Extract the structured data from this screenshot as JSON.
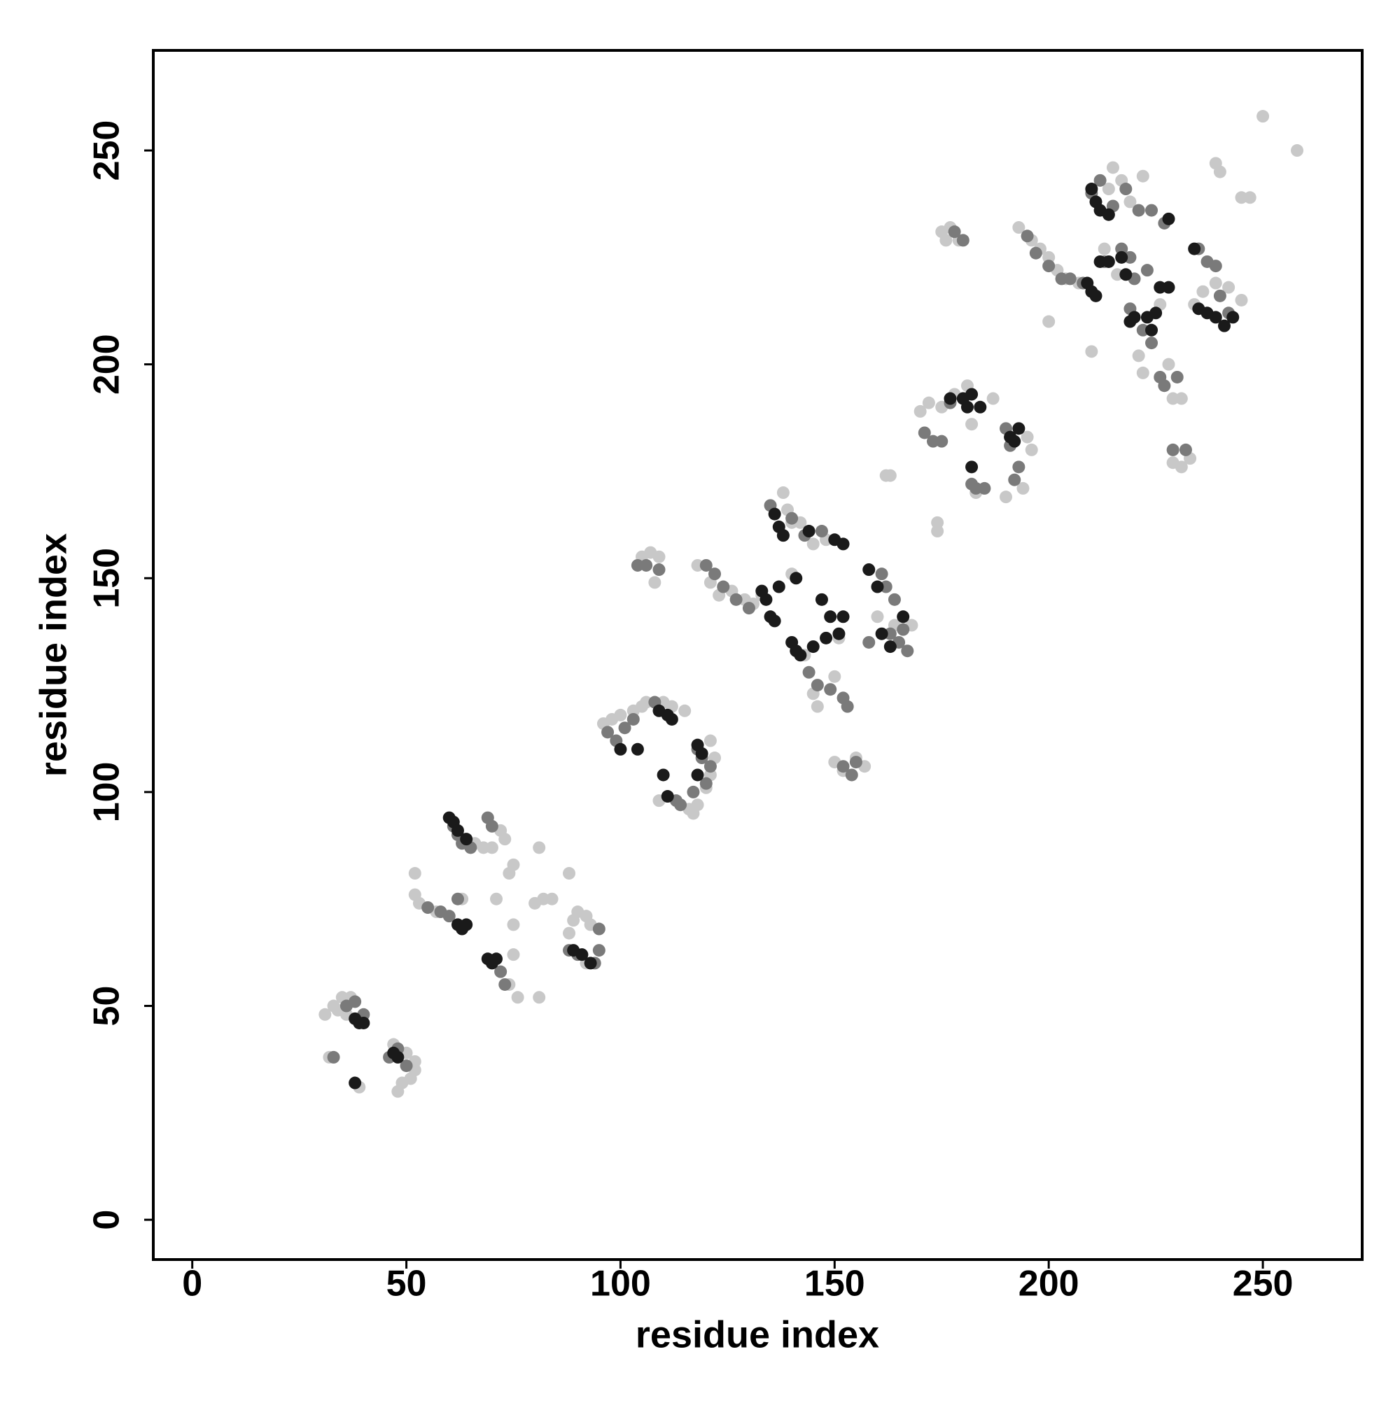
{
  "chart_data": {
    "type": "scatter",
    "x_label": "residue index",
    "y_label": "residue index",
    "xlim": [
      -9.1,
      273.2
    ],
    "ylim": [
      -9.3,
      273.4
    ],
    "xticks": [
      0,
      50,
      100,
      150,
      200,
      250
    ],
    "yticks": [
      0,
      50,
      100,
      150,
      200,
      250
    ],
    "grid": false,
    "series": [
      {
        "color": "#c8c8c8",
        "x": [
          31,
          33,
          35,
          37,
          34,
          32,
          39,
          48,
          49,
          51,
          52,
          52,
          50,
          47,
          36,
          52,
          52,
          53,
          55,
          57,
          63,
          66,
          68,
          70,
          72,
          73,
          74,
          75,
          75,
          75,
          74,
          76,
          81,
          80,
          81,
          82,
          84,
          88,
          88,
          89,
          90,
          92,
          93,
          92,
          71,
          96,
          98,
          100,
          103,
          105,
          106,
          110,
          112,
          115,
          121,
          122,
          121,
          120,
          118,
          117,
          116,
          109,
          105,
          107,
          109,
          108,
          118,
          121,
          123,
          126,
          129,
          131,
          138,
          139,
          140,
          142,
          145,
          148,
          151,
          160,
          164,
          168,
          150,
          152,
          155,
          157,
          146,
          145,
          143,
          150,
          133,
          140,
          162,
          163,
          174,
          174,
          170,
          172,
          175,
          178,
          181,
          182,
          187,
          190,
          194,
          196,
          195,
          183,
          175,
          177,
          176,
          179,
          193,
          196,
          198,
          200,
          202,
          204,
          207,
          200,
          210,
          213,
          215,
          217,
          219,
          214,
          222,
          216,
          226,
          229,
          231,
          229,
          231,
          233,
          234,
          236,
          239,
          242,
          245,
          239,
          240,
          245,
          247,
          250,
          258,
          221,
          222,
          228
        ],
        "y": [
          48,
          50,
          52,
          52,
          49,
          38,
          31,
          30,
          32,
          33,
          35,
          37,
          39,
          41,
          48,
          81,
          76,
          74,
          73,
          72,
          75,
          88,
          87,
          87,
          91,
          89,
          81,
          83,
          69,
          62,
          55,
          52,
          52,
          74,
          87,
          75,
          75,
          81,
          67,
          70,
          72,
          71,
          69,
          60,
          75,
          116,
          117,
          118,
          119,
          120,
          121,
          121,
          120,
          119,
          112,
          108,
          104,
          101,
          97,
          95,
          96,
          98,
          155,
          156,
          155,
          149,
          153,
          149,
          146,
          147,
          145,
          144,
          170,
          166,
          163,
          163,
          158,
          159,
          136,
          141,
          139,
          139,
          107,
          105,
          108,
          106,
          120,
          123,
          132,
          127,
          146,
          151,
          174,
          174,
          163,
          161,
          189,
          191,
          190,
          193,
          195,
          186,
          192,
          169,
          171,
          180,
          183,
          170,
          231,
          232,
          229,
          229,
          232,
          229,
          227,
          225,
          222,
          220,
          219,
          210,
          203,
          227,
          246,
          243,
          238,
          241,
          244,
          221,
          214,
          192,
          192,
          177,
          176,
          178,
          214,
          217,
          219,
          218,
          215,
          247,
          245,
          239,
          239,
          258,
          250,
          202,
          198,
          200
        ]
      },
      {
        "color": "#7a7a7a",
        "x": [
          33,
          36,
          38,
          40,
          48,
          50,
          46,
          55,
          58,
          60,
          61,
          62,
          63,
          65,
          69,
          70,
          72,
          73,
          88,
          90,
          94,
          95,
          95,
          62,
          97,
          99,
          101,
          103,
          108,
          113,
          114,
          118,
          119,
          121,
          120,
          117,
          106,
          109,
          104,
          120,
          122,
          124,
          127,
          130,
          135,
          138,
          140,
          143,
          147,
          144,
          146,
          149,
          152,
          153,
          161,
          162,
          163,
          165,
          166,
          167,
          152,
          154,
          155,
          158,
          164,
          171,
          173,
          175,
          177,
          180,
          182,
          183,
          185,
          192,
          193,
          191,
          190,
          178,
          180,
          195,
          197,
          200,
          203,
          205,
          208,
          210,
          212,
          215,
          218,
          221,
          224,
          227,
          213,
          217,
          219,
          222,
          224,
          226,
          227,
          230,
          229,
          232,
          235,
          237,
          239,
          240,
          242,
          223,
          220,
          219
        ],
        "y": [
          38,
          50,
          51,
          48,
          40,
          36,
          38,
          73,
          72,
          71,
          92,
          90,
          88,
          87,
          94,
          92,
          58,
          55,
          63,
          62,
          60,
          63,
          68,
          75,
          114,
          112,
          115,
          117,
          121,
          98,
          97,
          110,
          108,
          106,
          102,
          100,
          153,
          152,
          153,
          153,
          151,
          148,
          145,
          143,
          167,
          160,
          164,
          160,
          161,
          128,
          125,
          124,
          122,
          120,
          151,
          148,
          137,
          135,
          138,
          133,
          106,
          104,
          107,
          135,
          145,
          184,
          182,
          182,
          191,
          192,
          172,
          171,
          171,
          173,
          176,
          181,
          185,
          231,
          229,
          230,
          226,
          223,
          220,
          220,
          219,
          240,
          243,
          237,
          241,
          236,
          236,
          233,
          224,
          227,
          213,
          208,
          205,
          197,
          195,
          197,
          180,
          180,
          227,
          224,
          223,
          216,
          212,
          222,
          220,
          225
        ]
      },
      {
        "color": "#1a1a1a",
        "x": [
          38,
          39,
          40,
          47,
          48,
          38,
          60,
          61,
          62,
          62,
          63,
          64,
          69,
          70,
          71,
          89,
          91,
          93,
          64,
          100,
          104,
          109,
          111,
          112,
          110,
          111,
          118,
          119,
          118,
          133,
          134,
          135,
          136,
          137,
          136,
          137,
          138,
          140,
          141,
          142,
          145,
          148,
          149,
          152,
          152,
          150,
          158,
          160,
          161,
          163,
          166,
          144,
          141,
          147,
          151,
          177,
          181,
          182,
          184,
          182,
          191,
          192,
          193,
          180,
          209,
          210,
          211,
          212,
          214,
          210,
          211,
          212,
          214,
          217,
          218,
          219,
          220,
          223,
          224,
          226,
          228,
          228,
          234,
          235,
          237,
          239,
          241,
          243,
          225
        ],
        "y": [
          47,
          46,
          46,
          39,
          38,
          32,
          94,
          93,
          91,
          69,
          68,
          69,
          61,
          60,
          61,
          63,
          62,
          60,
          89,
          110,
          110,
          119,
          118,
          117,
          104,
          99,
          111,
          109,
          104,
          147,
          145,
          141,
          140,
          148,
          165,
          162,
          160,
          135,
          133,
          132,
          134,
          136,
          141,
          141,
          158,
          159,
          152,
          148,
          137,
          134,
          141,
          161,
          150,
          145,
          137,
          192,
          190,
          193,
          190,
          176,
          183,
          182,
          185,
          192,
          219,
          217,
          216,
          224,
          224,
          241,
          238,
          236,
          235,
          225,
          221,
          210,
          211,
          211,
          208,
          218,
          218,
          234,
          227,
          213,
          212,
          211,
          209,
          211,
          212
        ]
      }
    ]
  }
}
